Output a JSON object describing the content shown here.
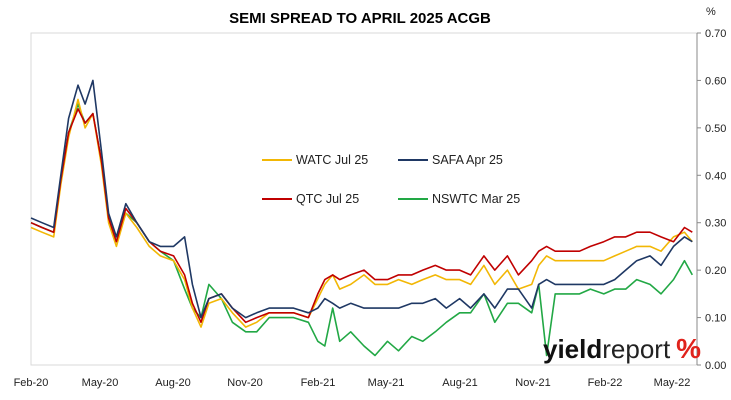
{
  "chart_data": {
    "type": "line",
    "title": "SEMI SPREAD TO APRIL 2025 ACGB",
    "unit_label": "%",
    "x_ticks": [
      "Feb-20",
      "May-20",
      "Aug-20",
      "Nov-20",
      "Feb-21",
      "May-21",
      "Aug-21",
      "Nov-21",
      "Feb-22",
      "May-22"
    ],
    "y_ticks": [
      "0.70",
      "0.60",
      "0.50",
      "0.40",
      "0.30",
      "0.20",
      "0.10",
      "0.00"
    ],
    "ylim": [
      0,
      0.7
    ],
    "y_axis_side": "right",
    "grid": false,
    "legend_placement": "center",
    "x": [
      "2020-02-01",
      "2020-02-15",
      "2020-03-01",
      "2020-03-10",
      "2020-03-20",
      "2020-04-01",
      "2020-04-10",
      "2020-04-20",
      "2020-05-01",
      "2020-05-10",
      "2020-05-20",
      "2020-06-01",
      "2020-06-15",
      "2020-07-01",
      "2020-07-15",
      "2020-08-01",
      "2020-08-15",
      "2020-08-25",
      "2020-09-05",
      "2020-09-15",
      "2020-10-01",
      "2020-10-15",
      "2020-11-01",
      "2020-11-15",
      "2020-12-01",
      "2020-12-15",
      "2021-01-01",
      "2021-01-20",
      "2021-02-01",
      "2021-02-10",
      "2021-02-20",
      "2021-03-01",
      "2021-03-15",
      "2021-04-01",
      "2021-04-15",
      "2021-05-01",
      "2021-05-15",
      "2021-06-01",
      "2021-06-15",
      "2021-07-01",
      "2021-07-15",
      "2021-08-01",
      "2021-08-15",
      "2021-09-01",
      "2021-09-15",
      "2021-10-01",
      "2021-10-15",
      "2021-11-01",
      "2021-11-10",
      "2021-11-20",
      "2021-12-01",
      "2021-12-15",
      "2022-01-01",
      "2022-01-15",
      "2022-02-01",
      "2022-02-15",
      "2022-03-01",
      "2022-03-15",
      "2022-04-01",
      "2022-04-15",
      "2022-05-01",
      "2022-05-15",
      "2022-05-25"
    ],
    "series": [
      {
        "name": "WATC Jul 25",
        "color": "#f2b705",
        "values": [
          0.29,
          0.28,
          0.27,
          0.38,
          0.48,
          0.56,
          0.5,
          0.53,
          0.42,
          0.3,
          0.25,
          0.32,
          0.29,
          0.25,
          0.23,
          0.22,
          0.18,
          0.12,
          0.08,
          0.13,
          0.14,
          0.11,
          0.08,
          0.09,
          0.11,
          0.11,
          0.11,
          0.1,
          0.14,
          0.17,
          0.19,
          0.16,
          0.17,
          0.19,
          0.17,
          0.17,
          0.18,
          0.17,
          0.18,
          0.19,
          0.18,
          0.18,
          0.17,
          0.21,
          0.17,
          0.2,
          0.16,
          0.17,
          0.21,
          0.23,
          0.22,
          0.22,
          0.22,
          0.22,
          0.22,
          0.23,
          0.24,
          0.25,
          0.25,
          0.24,
          0.27,
          0.28,
          0.26
        ]
      },
      {
        "name": "SAFA Apr 25",
        "color": "#1f3864",
        "values": [
          0.31,
          0.3,
          0.29,
          0.4,
          0.52,
          0.59,
          0.55,
          0.6,
          0.45,
          0.32,
          0.27,
          0.34,
          0.3,
          0.26,
          0.25,
          0.25,
          0.27,
          0.17,
          0.1,
          0.14,
          0.15,
          0.12,
          0.1,
          0.11,
          0.12,
          0.12,
          0.12,
          0.11,
          0.12,
          0.14,
          0.13,
          0.12,
          0.13,
          0.12,
          0.12,
          0.12,
          0.12,
          0.13,
          0.13,
          0.14,
          0.12,
          0.14,
          0.12,
          0.15,
          0.12,
          0.16,
          0.16,
          0.12,
          0.17,
          0.18,
          0.17,
          0.17,
          0.17,
          0.17,
          0.17,
          0.18,
          0.2,
          0.22,
          0.23,
          0.21,
          0.25,
          0.27,
          0.26
        ]
      },
      {
        "name": "QTC Jul 25",
        "color": "#c00000",
        "values": [
          0.3,
          0.29,
          0.28,
          0.39,
          0.49,
          0.54,
          0.51,
          0.53,
          0.43,
          0.31,
          0.26,
          0.33,
          0.3,
          0.26,
          0.24,
          0.23,
          0.19,
          0.13,
          0.09,
          0.14,
          0.15,
          0.12,
          0.09,
          0.1,
          0.11,
          0.11,
          0.11,
          0.1,
          0.15,
          0.18,
          0.19,
          0.18,
          0.19,
          0.2,
          0.18,
          0.18,
          0.19,
          0.19,
          0.2,
          0.21,
          0.2,
          0.2,
          0.19,
          0.23,
          0.2,
          0.23,
          0.19,
          0.22,
          0.24,
          0.25,
          0.24,
          0.24,
          0.24,
          0.25,
          0.26,
          0.27,
          0.27,
          0.28,
          0.28,
          0.27,
          0.26,
          0.29,
          0.28
        ]
      },
      {
        "name": "NSWTC Mar 25",
        "color": "#22a845",
        "values": [
          0.3,
          0.29,
          0.28,
          0.39,
          0.49,
          0.55,
          0.51,
          0.53,
          0.43,
          0.31,
          0.26,
          0.32,
          0.3,
          0.26,
          0.24,
          0.22,
          0.16,
          0.12,
          0.1,
          0.17,
          0.14,
          0.09,
          0.07,
          0.07,
          0.1,
          0.1,
          0.1,
          0.09,
          0.05,
          0.04,
          0.12,
          0.05,
          0.07,
          0.04,
          0.02,
          0.05,
          0.03,
          0.06,
          0.05,
          0.07,
          0.09,
          0.11,
          0.11,
          0.15,
          0.09,
          0.13,
          0.13,
          0.11,
          0.17,
          0.02,
          0.15,
          0.15,
          0.15,
          0.16,
          0.15,
          0.16,
          0.16,
          0.18,
          0.17,
          0.15,
          0.18,
          0.22,
          0.19
        ]
      }
    ],
    "watermark": "yieldreport %"
  }
}
